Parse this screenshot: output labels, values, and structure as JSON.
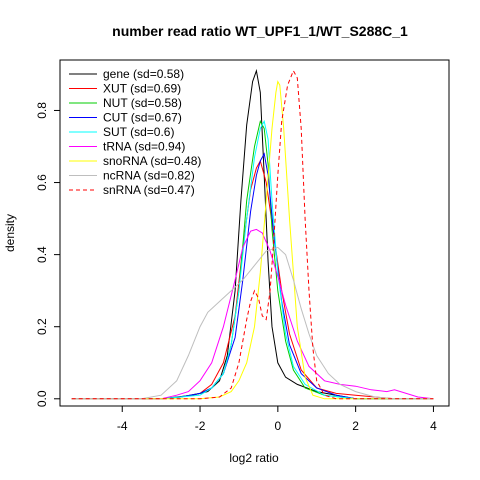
{
  "chart_data": {
    "type": "line",
    "title": "number read ratio WT_UPF1_1/WT_S288C_1",
    "xlabel": "log2 ratio",
    "ylabel": "density",
    "xlim": [
      -5.6,
      4.4
    ],
    "ylim": [
      -0.02,
      0.94
    ],
    "xticks": [
      -4,
      -2,
      0,
      2,
      4
    ],
    "yticks": [
      0.0,
      0.2,
      0.4,
      0.6,
      0.8
    ],
    "xtick_labels": [
      "-4",
      "-2",
      "0",
      "2",
      "4"
    ],
    "ytick_labels": [
      "0.0",
      "0.2",
      "0.4",
      "0.6",
      "0.8"
    ],
    "legend_position": "top-left",
    "grid": false,
    "series": [
      {
        "name": "gene (sd=0.58)",
        "color": "#000000",
        "dash": false,
        "points": [
          [
            -5.3,
            0.0
          ],
          [
            -3.0,
            0.0
          ],
          [
            -2.6,
            0.005
          ],
          [
            -2.2,
            0.01
          ],
          [
            -1.8,
            0.02
          ],
          [
            -1.5,
            0.05
          ],
          [
            -1.3,
            0.12
          ],
          [
            -1.1,
            0.3
          ],
          [
            -0.95,
            0.55
          ],
          [
            -0.8,
            0.76
          ],
          [
            -0.65,
            0.88
          ],
          [
            -0.55,
            0.91
          ],
          [
            -0.45,
            0.85
          ],
          [
            -0.35,
            0.62
          ],
          [
            -0.25,
            0.38
          ],
          [
            -0.15,
            0.2
          ],
          [
            0.0,
            0.1
          ],
          [
            0.2,
            0.06
          ],
          [
            0.5,
            0.04
          ],
          [
            1.0,
            0.02
          ],
          [
            1.5,
            0.01
          ],
          [
            2.0,
            0.0
          ],
          [
            4.0,
            0.0
          ]
        ]
      },
      {
        "name": "XUT (sd=0.69)",
        "color": "#ff0000",
        "dash": false,
        "points": [
          [
            -5.3,
            0.0
          ],
          [
            -3.0,
            0.0
          ],
          [
            -2.5,
            0.005
          ],
          [
            -2.0,
            0.015
          ],
          [
            -1.7,
            0.04
          ],
          [
            -1.4,
            0.1
          ],
          [
            -1.1,
            0.23
          ],
          [
            -0.9,
            0.42
          ],
          [
            -0.7,
            0.58
          ],
          [
            -0.55,
            0.64
          ],
          [
            -0.45,
            0.66
          ],
          [
            -0.3,
            0.6
          ],
          [
            -0.1,
            0.45
          ],
          [
            0.1,
            0.3
          ],
          [
            0.3,
            0.18
          ],
          [
            0.6,
            0.08
          ],
          [
            1.0,
            0.03
          ],
          [
            1.5,
            0.015
          ],
          [
            2.0,
            0.01
          ],
          [
            2.5,
            0.005
          ],
          [
            3.0,
            0.0
          ],
          [
            4.0,
            0.0
          ]
        ]
      },
      {
        "name": "NUT (sd=0.58)",
        "color": "#00cc00",
        "dash": false,
        "points": [
          [
            -5.3,
            0.0
          ],
          [
            -3.0,
            0.0
          ],
          [
            -2.5,
            0.005
          ],
          [
            -2.0,
            0.015
          ],
          [
            -1.7,
            0.03
          ],
          [
            -1.4,
            0.07
          ],
          [
            -1.2,
            0.15
          ],
          [
            -1.0,
            0.3
          ],
          [
            -0.8,
            0.55
          ],
          [
            -0.6,
            0.7
          ],
          [
            -0.45,
            0.77
          ],
          [
            -0.35,
            0.75
          ],
          [
            -0.25,
            0.65
          ],
          [
            -0.15,
            0.47
          ],
          [
            0.0,
            0.3
          ],
          [
            0.2,
            0.16
          ],
          [
            0.4,
            0.08
          ],
          [
            0.7,
            0.03
          ],
          [
            1.2,
            0.01
          ],
          [
            2.0,
            0.0
          ],
          [
            4.0,
            0.0
          ]
        ]
      },
      {
        "name": "CUT (sd=0.67)",
        "color": "#0000ff",
        "dash": false,
        "points": [
          [
            -5.3,
            0.0
          ],
          [
            -3.0,
            0.0
          ],
          [
            -2.5,
            0.005
          ],
          [
            -2.0,
            0.015
          ],
          [
            -1.7,
            0.03
          ],
          [
            -1.4,
            0.07
          ],
          [
            -1.1,
            0.17
          ],
          [
            -0.9,
            0.33
          ],
          [
            -0.7,
            0.52
          ],
          [
            -0.55,
            0.62
          ],
          [
            -0.45,
            0.66
          ],
          [
            -0.35,
            0.68
          ],
          [
            -0.25,
            0.62
          ],
          [
            -0.1,
            0.45
          ],
          [
            0.1,
            0.27
          ],
          [
            0.3,
            0.15
          ],
          [
            0.6,
            0.07
          ],
          [
            1.0,
            0.03
          ],
          [
            1.5,
            0.01
          ],
          [
            2.0,
            0.0
          ],
          [
            4.0,
            0.0
          ]
        ]
      },
      {
        "name": "SUT (sd=0.6)",
        "color": "#00ffff",
        "dash": false,
        "points": [
          [
            -5.3,
            0.0
          ],
          [
            -3.0,
            0.0
          ],
          [
            -2.5,
            0.005
          ],
          [
            -2.0,
            0.01
          ],
          [
            -1.7,
            0.03
          ],
          [
            -1.4,
            0.07
          ],
          [
            -1.2,
            0.15
          ],
          [
            -1.0,
            0.3
          ],
          [
            -0.8,
            0.5
          ],
          [
            -0.6,
            0.67
          ],
          [
            -0.45,
            0.75
          ],
          [
            -0.35,
            0.77
          ],
          [
            -0.25,
            0.72
          ],
          [
            -0.15,
            0.55
          ],
          [
            0.0,
            0.35
          ],
          [
            0.2,
            0.18
          ],
          [
            0.4,
            0.09
          ],
          [
            0.7,
            0.04
          ],
          [
            1.2,
            0.01
          ],
          [
            2.0,
            0.0
          ],
          [
            4.0,
            0.0
          ]
        ]
      },
      {
        "name": "tRNA (sd=0.94)",
        "color": "#ff00ff",
        "dash": false,
        "points": [
          [
            -5.3,
            0.0
          ],
          [
            -3.0,
            0.0
          ],
          [
            -2.6,
            0.01
          ],
          [
            -2.3,
            0.02
          ],
          [
            -2.0,
            0.05
          ],
          [
            -1.7,
            0.1
          ],
          [
            -1.4,
            0.2
          ],
          [
            -1.1,
            0.33
          ],
          [
            -0.9,
            0.42
          ],
          [
            -0.7,
            0.465
          ],
          [
            -0.55,
            0.47
          ],
          [
            -0.4,
            0.46
          ],
          [
            -0.2,
            0.41
          ],
          [
            0.0,
            0.34
          ],
          [
            0.2,
            0.26
          ],
          [
            0.5,
            0.16
          ],
          [
            0.8,
            0.09
          ],
          [
            1.2,
            0.05
          ],
          [
            1.6,
            0.04
          ],
          [
            2.0,
            0.035
          ],
          [
            2.4,
            0.025
          ],
          [
            2.8,
            0.02
          ],
          [
            3.0,
            0.025
          ],
          [
            3.3,
            0.015
          ],
          [
            3.6,
            0.005
          ],
          [
            4.0,
            0.0
          ]
        ]
      },
      {
        "name": "snoRNA (sd=0.48)",
        "color": "#ffff00",
        "dash": false,
        "points": [
          [
            -5.3,
            0.0
          ],
          [
            -3.0,
            0.0
          ],
          [
            -2.0,
            0.0
          ],
          [
            -1.5,
            0.005
          ],
          [
            -1.2,
            0.02
          ],
          [
            -1.0,
            0.05
          ],
          [
            -0.8,
            0.1
          ],
          [
            -0.6,
            0.2
          ],
          [
            -0.45,
            0.35
          ],
          [
            -0.3,
            0.55
          ],
          [
            -0.15,
            0.75
          ],
          [
            -0.05,
            0.85
          ],
          [
            0.0,
            0.88
          ],
          [
            0.05,
            0.87
          ],
          [
            0.15,
            0.75
          ],
          [
            0.3,
            0.5
          ],
          [
            0.5,
            0.2
          ],
          [
            0.7,
            0.06
          ],
          [
            0.9,
            0.01
          ],
          [
            1.2,
            0.0
          ],
          [
            4.0,
            0.0
          ]
        ]
      },
      {
        "name": "ncRNA (sd=0.82)",
        "color": "#bebebe",
        "dash": false,
        "points": [
          [
            -5.3,
            0.0
          ],
          [
            -3.5,
            0.0
          ],
          [
            -3.0,
            0.01
          ],
          [
            -2.6,
            0.05
          ],
          [
            -2.3,
            0.12
          ],
          [
            -2.0,
            0.2
          ],
          [
            -1.8,
            0.24
          ],
          [
            -1.5,
            0.27
          ],
          [
            -1.2,
            0.3
          ],
          [
            -0.9,
            0.33
          ],
          [
            -0.6,
            0.37
          ],
          [
            -0.3,
            0.41
          ],
          [
            0.0,
            0.42
          ],
          [
            0.2,
            0.4
          ],
          [
            0.4,
            0.33
          ],
          [
            0.6,
            0.25
          ],
          [
            0.8,
            0.18
          ],
          [
            1.0,
            0.12
          ],
          [
            1.3,
            0.07
          ],
          [
            1.6,
            0.04
          ],
          [
            2.0,
            0.02
          ],
          [
            2.5,
            0.005
          ],
          [
            3.0,
            0.0
          ],
          [
            4.0,
            0.0
          ]
        ]
      },
      {
        "name": "snRNA (sd=0.47)",
        "color": "#ff0000",
        "dash": true,
        "points": [
          [
            -5.3,
            0.0
          ],
          [
            -2.0,
            0.0
          ],
          [
            -1.5,
            0.005
          ],
          [
            -1.2,
            0.03
          ],
          [
            -1.0,
            0.1
          ],
          [
            -0.8,
            0.22
          ],
          [
            -0.7,
            0.27
          ],
          [
            -0.6,
            0.3
          ],
          [
            -0.5,
            0.28
          ],
          [
            -0.4,
            0.23
          ],
          [
            -0.3,
            0.22
          ],
          [
            -0.2,
            0.3
          ],
          [
            -0.1,
            0.45
          ],
          [
            0.0,
            0.62
          ],
          [
            0.1,
            0.77
          ],
          [
            0.25,
            0.87
          ],
          [
            0.4,
            0.91
          ],
          [
            0.5,
            0.89
          ],
          [
            0.6,
            0.75
          ],
          [
            0.7,
            0.5
          ],
          [
            0.8,
            0.3
          ],
          [
            0.9,
            0.14
          ],
          [
            1.0,
            0.05
          ],
          [
            1.2,
            0.01
          ],
          [
            1.5,
            0.0
          ],
          [
            4.0,
            0.0
          ]
        ]
      }
    ]
  }
}
